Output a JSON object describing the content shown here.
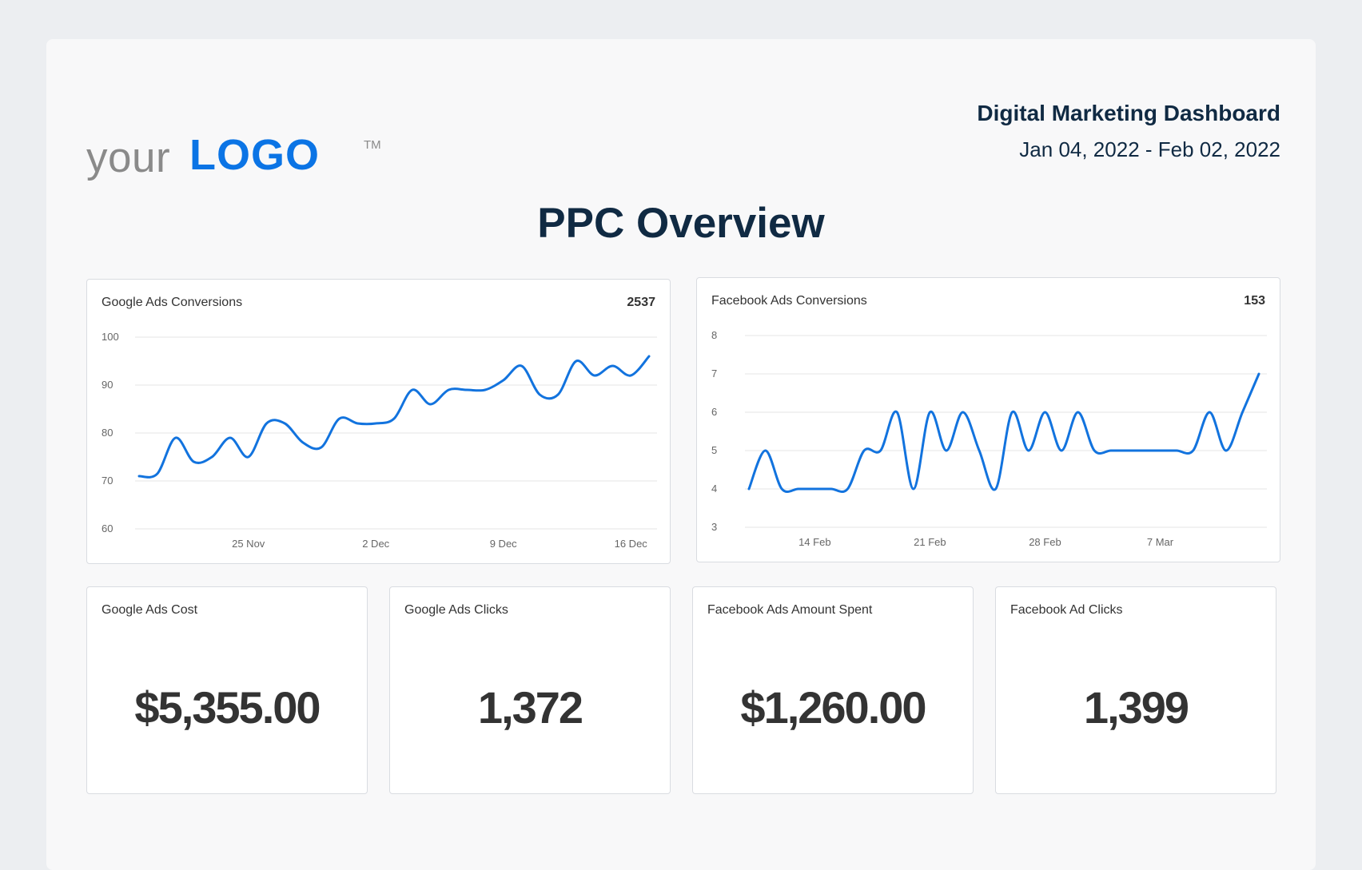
{
  "header": {
    "logo_your": "your",
    "logo_mark": "LOGO",
    "logo_tm": "TM",
    "report_title": "Digital Marketing Dashboard",
    "date_range": "Jan 04, 2022 - Feb 02, 2022",
    "page_title": "PPC Overview"
  },
  "colors": {
    "accent": "#1273de",
    "logo": "#0b74e5",
    "heading": "#102a43"
  },
  "google_chart": {
    "title": "Google Ads Conversions",
    "total": "2537"
  },
  "facebook_chart": {
    "title": "Facebook Ads Conversions",
    "total": "153"
  },
  "kpis": [
    {
      "label": "Google Ads Cost",
      "value": "$5,355.00"
    },
    {
      "label": "Google Ads Clicks",
      "value": "1,372"
    },
    {
      "label": "Facebook Ads Amount Spent",
      "value": "$1,260.00"
    },
    {
      "label": "Facebook Ad Clicks",
      "value": "1,399"
    }
  ],
  "chart_data": [
    {
      "type": "line",
      "title": "Google Ads Conversions",
      "ylim": [
        60,
        100
      ],
      "yticks": [
        100,
        90,
        80,
        70,
        60
      ],
      "xtick_labels": [
        "25 Nov",
        "2 Dec",
        "9 Dec",
        "16 Dec"
      ],
      "xtick_index": [
        6,
        13,
        20,
        27
      ],
      "grid": true,
      "series": [
        {
          "values": [
            71,
            71.5,
            79,
            74,
            75,
            79,
            75,
            82,
            82,
            78,
            77,
            83,
            82,
            82,
            83,
            89,
            86,
            89,
            89,
            89,
            91,
            94,
            88,
            88,
            95,
            92,
            94,
            92,
            96
          ]
        }
      ]
    },
    {
      "type": "line",
      "title": "Facebook Ads Conversions",
      "ylim": [
        3,
        8
      ],
      "yticks": [
        8,
        7,
        6,
        5,
        4,
        3
      ],
      "xtick_labels": [
        "14 Feb",
        "21 Feb",
        "28 Feb",
        "7 Mar"
      ],
      "xtick_index": [
        4,
        11,
        18,
        25
      ],
      "grid": true,
      "series": [
        {
          "values": [
            4,
            5,
            4,
            4,
            4,
            4,
            4,
            5,
            5,
            6,
            4,
            6,
            5,
            6,
            5,
            4,
            6,
            5,
            6,
            5,
            6,
            5,
            5,
            5,
            5,
            5,
            5,
            5,
            6,
            5,
            6,
            7
          ]
        }
      ]
    }
  ]
}
